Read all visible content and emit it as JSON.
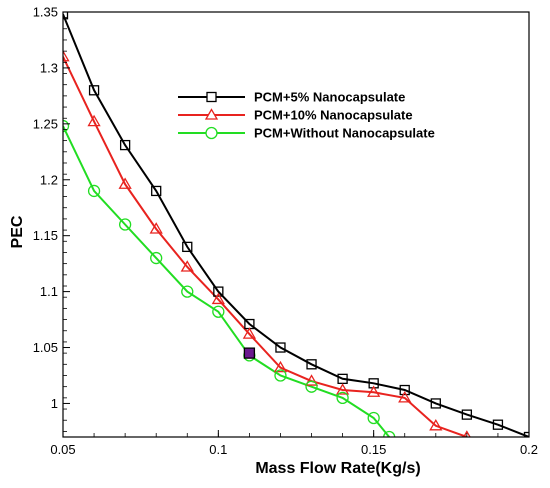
{
  "chart_data": {
    "type": "line",
    "xlabel": "Mass Flow Rate(Kg/s)",
    "ylabel": "PEC",
    "xlim": [
      0.05,
      0.2
    ],
    "ylim": [
      0.97,
      1.35
    ],
    "x_ticks": [
      {
        "value": 0.05,
        "label": "0.05"
      },
      {
        "value": 0.1,
        "label": "0.1"
      },
      {
        "value": 0.15,
        "label": "0.15"
      },
      {
        "value": 0.2,
        "label": "0.2"
      }
    ],
    "y_ticks": [
      {
        "value": 1.0,
        "label": "1"
      },
      {
        "value": 1.05,
        "label": "1.05"
      },
      {
        "value": 1.1,
        "label": "1.1"
      },
      {
        "value": 1.15,
        "label": "1.15"
      },
      {
        "value": 1.2,
        "label": "1.2"
      },
      {
        "value": 1.25,
        "label": "1.25"
      },
      {
        "value": 1.3,
        "label": "1.3"
      },
      {
        "value": 1.35,
        "label": "1.35"
      }
    ],
    "grid": false,
    "legend_position": "top-right",
    "series": [
      {
        "name": "PCM+5% Nanocapsulate",
        "color": "#000000",
        "marker": "square",
        "x": [
          0.05,
          0.06,
          0.07,
          0.08,
          0.09,
          0.1,
          0.11,
          0.12,
          0.13,
          0.14,
          0.15,
          0.16,
          0.17,
          0.18,
          0.19,
          0.2
        ],
        "y": [
          1.348,
          1.28,
          1.231,
          1.19,
          1.14,
          1.1,
          1.071,
          1.05,
          1.035,
          1.022,
          1.018,
          1.012,
          1.0,
          0.99,
          0.981,
          0.97
        ]
      },
      {
        "name": "PCM+10% Nanocapsulate",
        "color": "#e8231f",
        "marker": "triangle",
        "x": [
          0.05,
          0.06,
          0.07,
          0.08,
          0.09,
          0.1,
          0.11,
          0.12,
          0.13,
          0.14,
          0.15,
          0.16,
          0.17,
          0.18
        ],
        "y": [
          1.31,
          1.252,
          1.196,
          1.156,
          1.122,
          1.093,
          1.062,
          1.032,
          1.02,
          1.012,
          1.01,
          1.005,
          0.98,
          0.97
        ]
      },
      {
        "name": "PCM+Without Nanocapsulate",
        "color": "#22dd22",
        "marker": "circle",
        "x": [
          0.05,
          0.06,
          0.07,
          0.08,
          0.09,
          0.1,
          0.11,
          0.12,
          0.13,
          0.14,
          0.15,
          0.155
        ],
        "y": [
          1.248,
          1.19,
          1.16,
          1.13,
          1.1,
          1.082,
          1.043,
          1.025,
          1.015,
          1.005,
          0.987,
          0.97
        ]
      }
    ],
    "highlight_marker": {
      "x": 0.11,
      "y": 1.045,
      "fill": "#6b1a8f"
    }
  }
}
